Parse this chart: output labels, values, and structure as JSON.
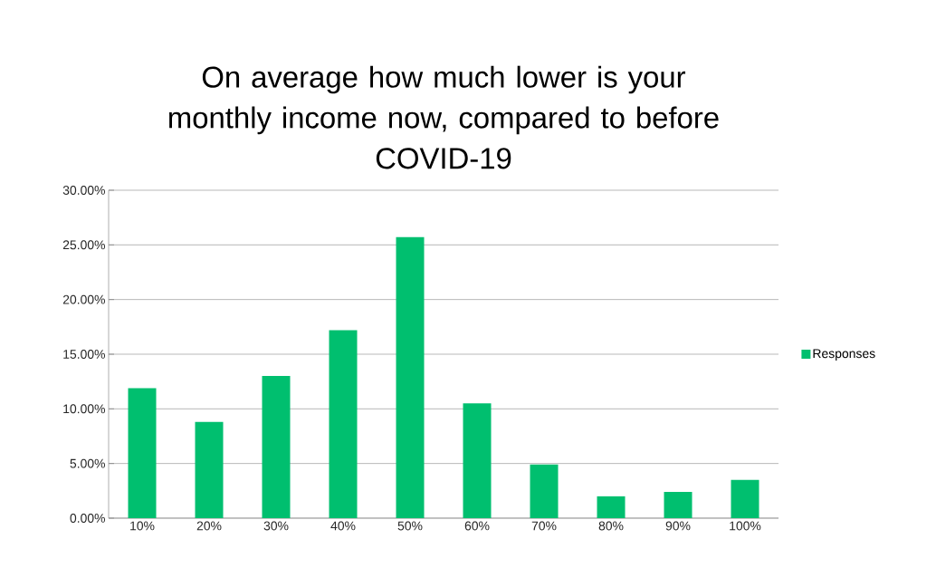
{
  "chart_data": {
    "type": "bar",
    "title": "On average how much lower is your\nmonthly income now, compared to before\nCOVID-19",
    "categories": [
      "10%",
      "20%",
      "30%",
      "40%",
      "50%",
      "60%",
      "70%",
      "80%",
      "90%",
      "100%"
    ],
    "series": [
      {
        "name": "Responses",
        "color": "#00bf6f",
        "values": [
          11.9,
          8.8,
          13.0,
          17.2,
          25.7,
          10.5,
          4.9,
          2.0,
          2.4,
          3.5
        ]
      }
    ],
    "ylim": [
      0,
      30
    ],
    "yticks": [
      {
        "value": 0,
        "label": "0.00%"
      },
      {
        "value": 5,
        "label": "5.00%"
      },
      {
        "value": 10,
        "label": "10.00%"
      },
      {
        "value": 15,
        "label": "15.00%"
      },
      {
        "value": 20,
        "label": "20.00%"
      },
      {
        "value": 25,
        "label": "25.00%"
      },
      {
        "value": 30,
        "label": "30.00%"
      }
    ],
    "grid": "y",
    "legend": "right"
  }
}
